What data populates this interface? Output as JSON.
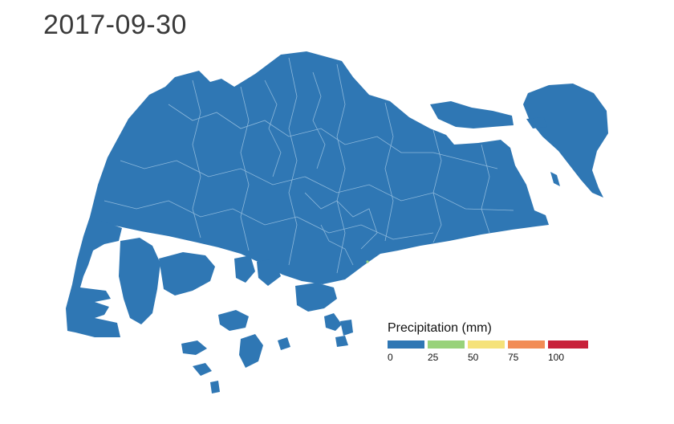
{
  "map": {
    "title": "2017-09-30",
    "land_color": "#2f77b4",
    "boundary_color": "#9cc3e2"
  },
  "legend": {
    "title": "Precipitation (mm)",
    "bins": [
      {
        "color": "#2f77b4"
      },
      {
        "color": "#98d27a"
      },
      {
        "color": "#f5e27a"
      },
      {
        "color": "#f28c55"
      },
      {
        "color": "#c8213a"
      }
    ],
    "ticks": [
      "0",
      "25",
      "50",
      "75",
      "100"
    ]
  }
}
